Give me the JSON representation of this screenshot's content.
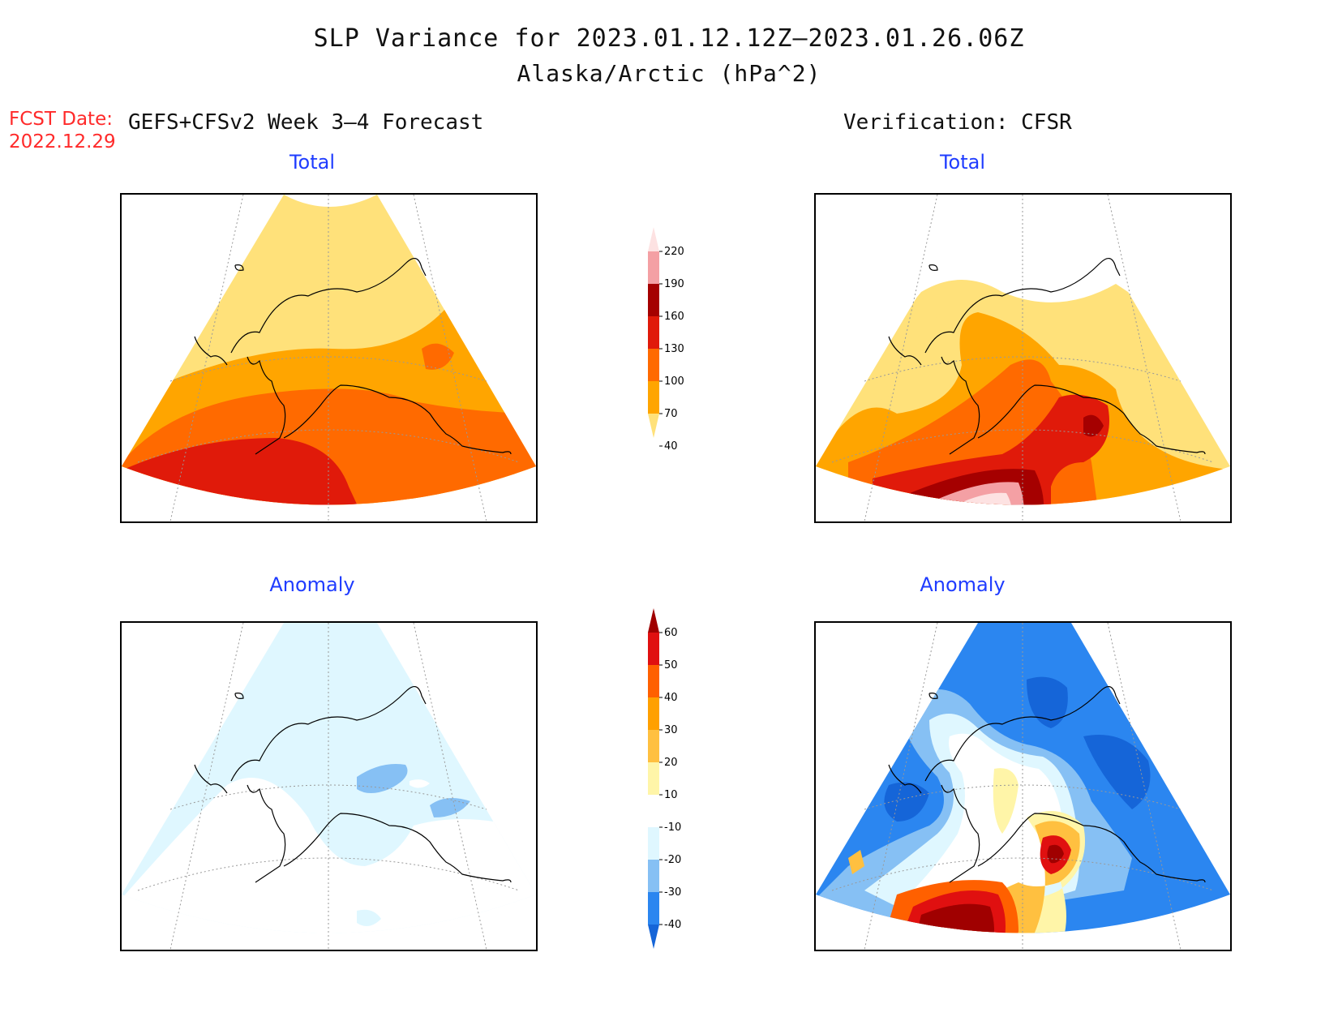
{
  "header": {
    "title": "SLP Variance for 2023.01.12.12Z—2023.01.26.06Z",
    "subtitle": "Alaska/Arctic (hPa^2)",
    "fcst_label": "FCST Date:",
    "fcst_date": "2022.12.29",
    "left_column": "GEFS+CFSv2 Week 3—4 Forecast",
    "right_column": "Verification: CFSR"
  },
  "panels": {
    "forecast_total": {
      "label": "Total"
    },
    "forecast_anomaly": {
      "label": "Anomaly"
    },
    "verif_total": {
      "label": "Total"
    },
    "verif_anomaly": {
      "label": "Anomaly"
    }
  },
  "colorbars": {
    "total": {
      "levels": [
        "40",
        "70",
        "100",
        "130",
        "160",
        "190",
        "220"
      ],
      "colors": [
        "#ffe17a",
        "#ffa500",
        "#ff6a00",
        "#e01a0a",
        "#a50000",
        "#f4a0a4",
        "#fde2e2"
      ]
    },
    "anomaly": {
      "levels": [
        "-40",
        "-30",
        "-20",
        "-10",
        "10",
        "20",
        "30",
        "40",
        "50",
        "60"
      ],
      "colors": [
        "#1565d8",
        "#2b86f0",
        "#86c0f4",
        "#dff7ff",
        "#ffffff",
        "#fff5a8",
        "#ffc040",
        "#ffa000",
        "#ff6000",
        "#e01010",
        "#a00000"
      ]
    }
  },
  "colors": {
    "title_blue": "#1f3cff",
    "fcst_red": "#ff2a2a"
  }
}
